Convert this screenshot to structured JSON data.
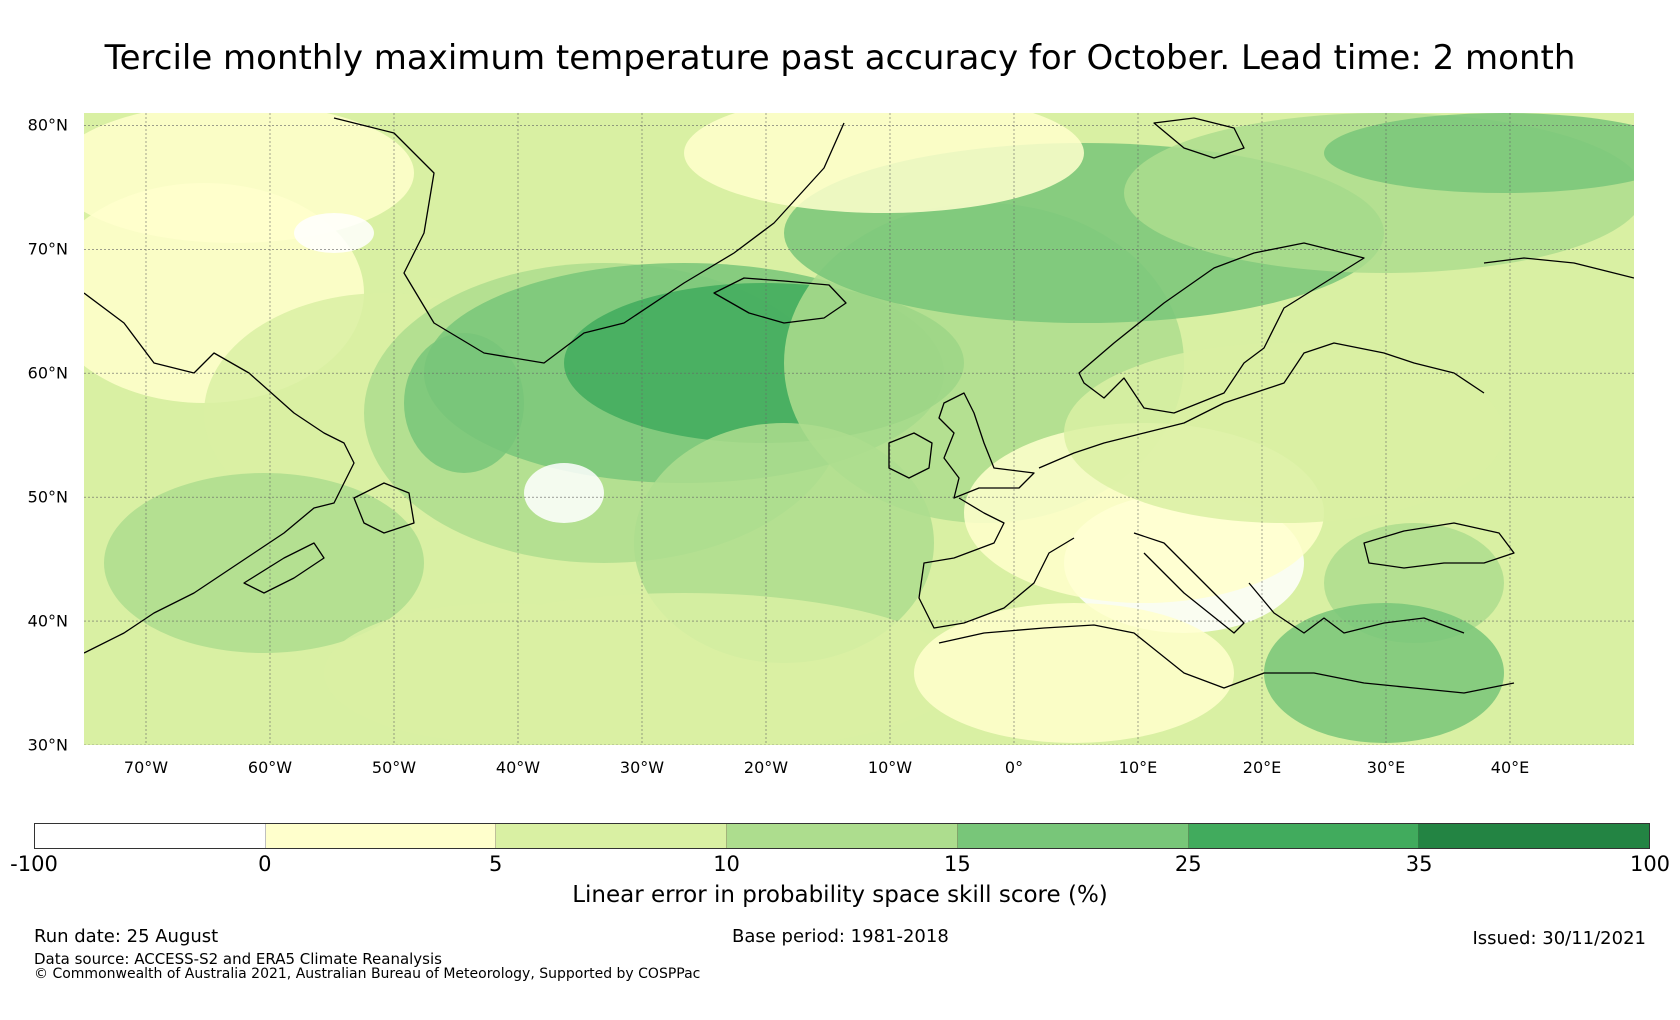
{
  "title": "Tercile monthly maximum temperature past accuracy for October. Lead time: 2 month",
  "map": {
    "lat_labels": [
      "80°N",
      "70°N",
      "60°N",
      "50°N",
      "40°N",
      "30°N"
    ],
    "lon_labels": [
      "70°W",
      "60°W",
      "50°W",
      "40°W",
      "30°W",
      "20°W",
      "10°W",
      "0°",
      "10°E",
      "20°E",
      "30°E",
      "40°E"
    ],
    "extent": {
      "lon_min": -75,
      "lon_max": 50,
      "lat_min": 30,
      "lat_max": 81
    }
  },
  "colorbar": {
    "ticks": [
      "-100",
      "0",
      "5",
      "10",
      "15",
      "25",
      "35",
      "100"
    ],
    "colors": [
      "#ffffff",
      "#ffffcc",
      "#d9f0a3",
      "#addd8e",
      "#78c679",
      "#41ab5d",
      "#238443"
    ],
    "label": "Linear error in probability space skill score (%)"
  },
  "footer": {
    "run_date": "Run date: 25 August",
    "base_period": "Base period: 1981-2018",
    "issued": "Issued: 30/11/2021",
    "data_source": "Data source: ACCESS-S2 and ERA5 Climate Reanalysis",
    "copyright": "© Commonwealth of Australia 2021, Australian Bureau of Meteorology, Supported by COSPPac"
  }
}
